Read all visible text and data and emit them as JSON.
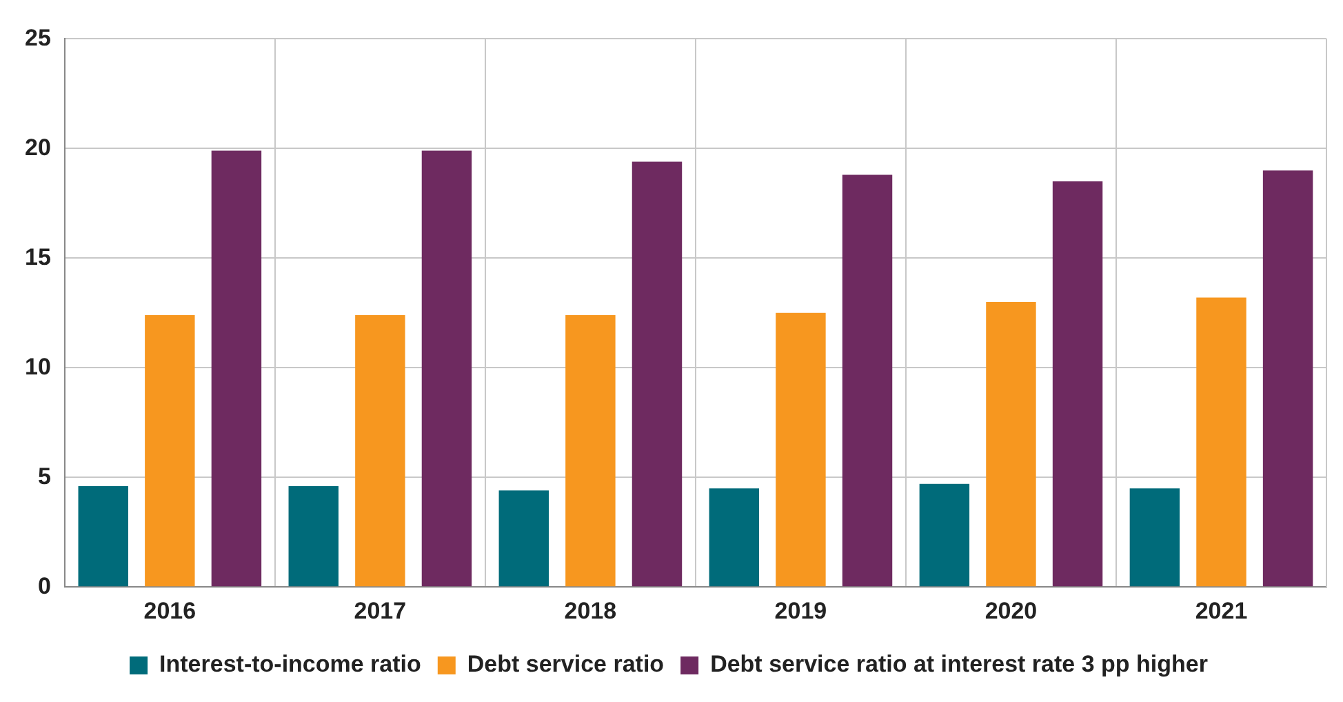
{
  "chart_data": {
    "type": "bar",
    "categories": [
      "2016",
      "2017",
      "2018",
      "2019",
      "2020",
      "2021"
    ],
    "series": [
      {
        "name": "Interest-to-income ratio",
        "color": "#006b7a",
        "values": [
          4.6,
          4.6,
          4.4,
          4.5,
          4.7,
          4.5
        ]
      },
      {
        "name": "Debt service ratio",
        "color": "#f7971f",
        "values": [
          12.4,
          12.4,
          12.4,
          12.5,
          13.0,
          13.2
        ]
      },
      {
        "name": "Debt service ratio at interest rate 3 pp higher",
        "color": "#6e2a60",
        "values": [
          19.9,
          19.9,
          19.4,
          18.8,
          18.5,
          19.0
        ]
      }
    ],
    "ylim": [
      0,
      25
    ],
    "yticks": [
      0,
      5,
      10,
      15,
      20,
      25
    ],
    "grid": true,
    "legend": "bottom"
  }
}
